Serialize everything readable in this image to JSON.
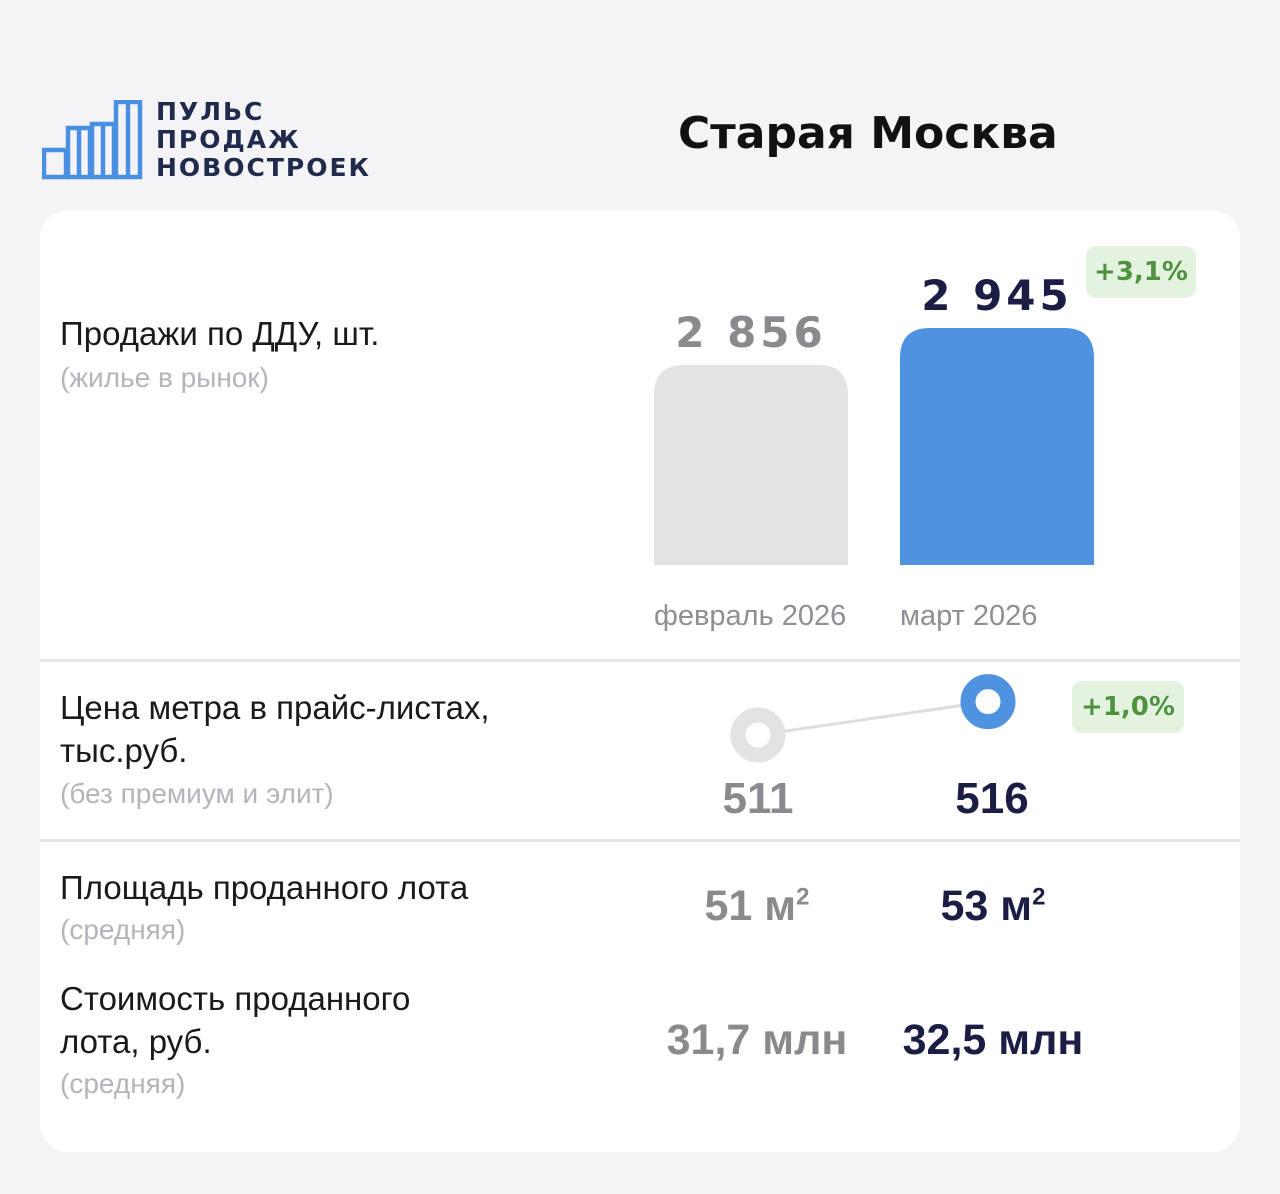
{
  "logo": {
    "line1": "ПУЛЬС",
    "line2": "ПРОДАЖ",
    "line3": "НОВОСТРОЕК",
    "icon": "buildings-bars-icon",
    "color": "#4a90e2"
  },
  "region": "Старая Москва",
  "colors": {
    "prev": "#e3e3e3",
    "curr": "#4f92e0",
    "prev_text": "#8a8a8e",
    "curr_text": "#1c1d45",
    "badge_bg": "#e3f3df",
    "badge_text": "#4e9240"
  },
  "sales": {
    "label": "Продажи по ДДУ, шт.",
    "sublabel": "(жилье в рынок)",
    "prev_label": "2 856",
    "curr_label": "2 945",
    "change": "+3,1%",
    "months": [
      "февраль 2026",
      "март 2026"
    ]
  },
  "price": {
    "label_line1": "Цена метра в прайс-листах,",
    "label_line2": "тыс.руб.",
    "sublabel": "(без премиум и элит)",
    "prev": "511",
    "curr": "516",
    "change": "+1,0%"
  },
  "area": {
    "label": "Площадь проданного лота",
    "sublabel": "(средняя)",
    "prev": "51 м",
    "curr": "53 м",
    "unit_exp": "2"
  },
  "cost": {
    "label_line1": "Стоимость проданного",
    "label_line2": "лота, руб.",
    "sublabel": "(средняя)",
    "prev": "31,7 млн",
    "curr": "32,5 млн"
  },
  "chart_data": [
    {
      "type": "bar",
      "categories": [
        "февраль 2026",
        "март 2026"
      ],
      "values": [
        2856,
        2945
      ],
      "title": "Продажи по ДДУ, шт."
    },
    {
      "type": "line",
      "categories": [
        "февраль 2026",
        "март 2026"
      ],
      "values": [
        511,
        516
      ],
      "title": "Цена метра в прайс-листах, тыс.руб."
    }
  ]
}
